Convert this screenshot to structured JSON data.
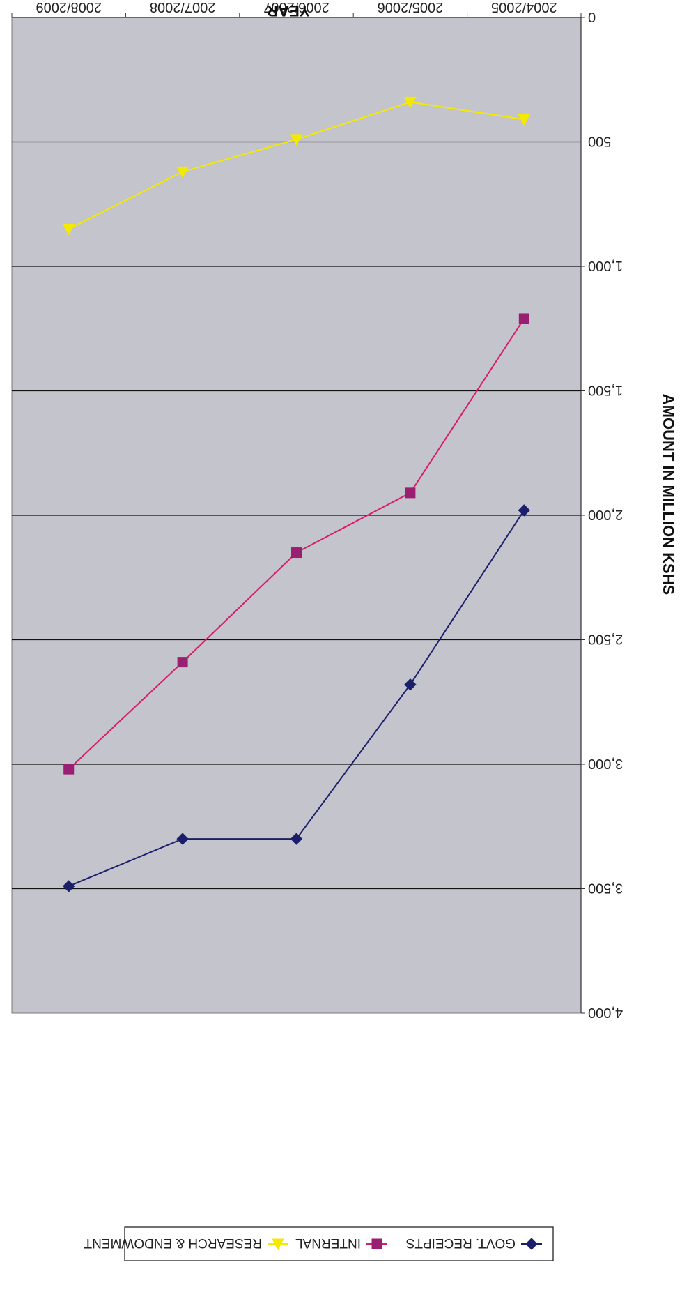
{
  "chart_data": {
    "type": "line",
    "title": "",
    "xlabel": "YEAR",
    "ylabel": "AMOUNT IN MILLION KSHS",
    "categories": [
      "2004/2005",
      "2005/2006",
      "2006/2007",
      "2007/2008",
      "2008/2009"
    ],
    "ylim": [
      0,
      4000
    ],
    "yticks": [
      0,
      500,
      1000,
      1500,
      2000,
      2500,
      3000,
      3500,
      4000
    ],
    "ytick_labels": [
      "0",
      "500",
      "1,000",
      "1,500",
      "2,000",
      "2,500",
      "3,000",
      "3,500",
      "4,000"
    ],
    "grid": true,
    "legend_position": "bottom",
    "orientation": "rotated-180",
    "series": [
      {
        "name": "GOVT. RECEIPTS",
        "values": [
          1980,
          2680,
          3300,
          3300,
          3490
        ],
        "color": "#1b1f6b",
        "marker": "diamond"
      },
      {
        "name": "INTERNAL",
        "values": [
          1210,
          1910,
          2150,
          2590,
          3020
        ],
        "color": "#e0206a",
        "marker": "square"
      },
      {
        "name": "RESEARCH & ENDOWMENT",
        "values": [
          410,
          340,
          490,
          620,
          850
        ],
        "color": "#f2e600",
        "marker": "triangle"
      }
    ]
  }
}
